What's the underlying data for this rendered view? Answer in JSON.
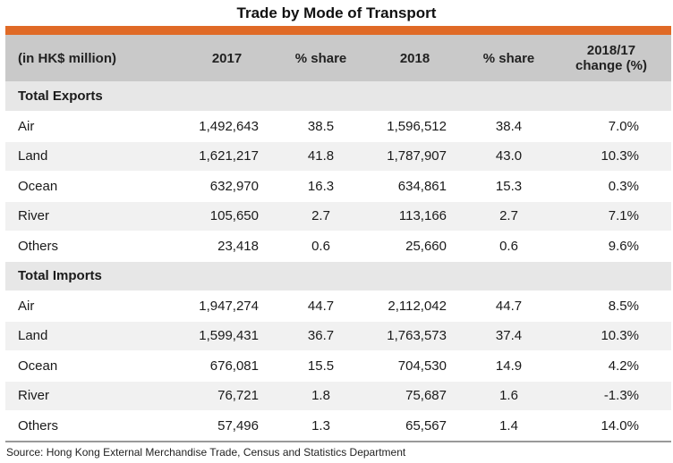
{
  "title": "Trade by Mode of Transport",
  "header": {
    "unit": "(in HK$ million)",
    "col_2017": "2017",
    "col_share1": "% share",
    "col_2018": "2018",
    "col_share2": "% share",
    "col_change_line1": "2018/17",
    "col_change_line2": "change (%)"
  },
  "sections": [
    {
      "name": "Total Exports",
      "rows": [
        {
          "mode": "Air",
          "v2017": "1,492,643",
          "s2017": "38.5",
          "v2018": "1,596,512",
          "s2018": "38.4",
          "change": "7.0%"
        },
        {
          "mode": "Land",
          "v2017": "1,621,217",
          "s2017": "41.8",
          "v2018": "1,787,907",
          "s2018": "43.0",
          "change": "10.3%"
        },
        {
          "mode": "Ocean",
          "v2017": "632,970",
          "s2017": "16.3",
          "v2018": "634,861",
          "s2018": "15.3",
          "change": "0.3%"
        },
        {
          "mode": "River",
          "v2017": "105,650",
          "s2017": "2.7",
          "v2018": "113,166",
          "s2018": "2.7",
          "change": "7.1%"
        },
        {
          "mode": "Others",
          "v2017": "23,418",
          "s2017": "0.6",
          "v2018": "25,660",
          "s2018": "0.6",
          "change": "9.6%"
        }
      ]
    },
    {
      "name": "Total Imports",
      "rows": [
        {
          "mode": "Air",
          "v2017": "1,947,274",
          "s2017": "44.7",
          "v2018": "2,112,042",
          "s2018": "44.7",
          "change": "8.5%"
        },
        {
          "mode": "Land",
          "v2017": "1,599,431",
          "s2017": "36.7",
          "v2018": "1,763,573",
          "s2018": "37.4",
          "change": "10.3%"
        },
        {
          "mode": "Ocean",
          "v2017": "676,081",
          "s2017": "15.5",
          "v2018": "704,530",
          "s2018": "14.9",
          "change": "4.2%"
        },
        {
          "mode": "River",
          "v2017": "76,721",
          "s2017": "1.8",
          "v2018": "75,687",
          "s2018": "1.6",
          "change": "-1.3%"
        },
        {
          "mode": "Others",
          "v2017": "57,496",
          "s2017": "1.3",
          "v2018": "65,567",
          "s2018": "1.4",
          "change": "14.0%"
        }
      ]
    }
  ],
  "source": "Source: Hong Kong External Merchandise Trade, Census and Statistics Department",
  "colors": {
    "accent": "#e06a26",
    "header_bg": "#c9c9c9",
    "section_bg": "#e7e7e7",
    "row_alt": "#f1f1f1"
  }
}
